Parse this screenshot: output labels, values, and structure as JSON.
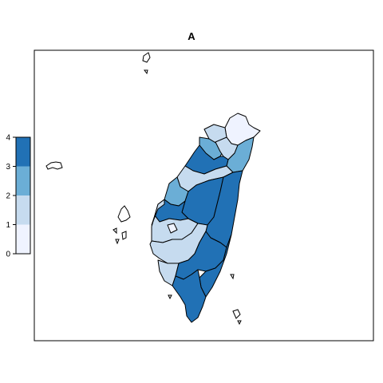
{
  "title": "A",
  "legend": {
    "ticks": [
      "0",
      "1",
      "2",
      "3",
      "4"
    ],
    "breaks": [
      0,
      1,
      2,
      3,
      4
    ],
    "colors": [
      "#eff3ff",
      "#c6dbef",
      "#6baed6",
      "#2171b5"
    ]
  },
  "chart_data": {
    "type": "choropleth",
    "title": "A",
    "scale_range": [
      0,
      4
    ],
    "regions": [
      {
        "id": "keelung-taipei",
        "value": 0.5
      },
      {
        "id": "new-taipei-east",
        "value": 1.5
      },
      {
        "id": "taoyuan",
        "value": 2.5
      },
      {
        "id": "hsinchu",
        "value": 1.5
      },
      {
        "id": "hsinchu-county",
        "value": 1.5
      },
      {
        "id": "yilan",
        "value": 2.5
      },
      {
        "id": "miaoli",
        "value": 3.5
      },
      {
        "id": "taichung",
        "value": 1.5
      },
      {
        "id": "changhua",
        "value": 2.5
      },
      {
        "id": "nantou",
        "value": 3.5
      },
      {
        "id": "hualien",
        "value": 3.5
      },
      {
        "id": "yunlin",
        "value": 3.5
      },
      {
        "id": "chiayi-county",
        "value": 1.5
      },
      {
        "id": "chiayi-city",
        "value": 0.5
      },
      {
        "id": "tainan",
        "value": 1.5
      },
      {
        "id": "kaohsiung",
        "value": 3.5
      },
      {
        "id": "taitung",
        "value": 3.5
      },
      {
        "id": "tainan-coast",
        "value": 1.5
      },
      {
        "id": "pingtung",
        "value": 3.5
      }
    ]
  }
}
